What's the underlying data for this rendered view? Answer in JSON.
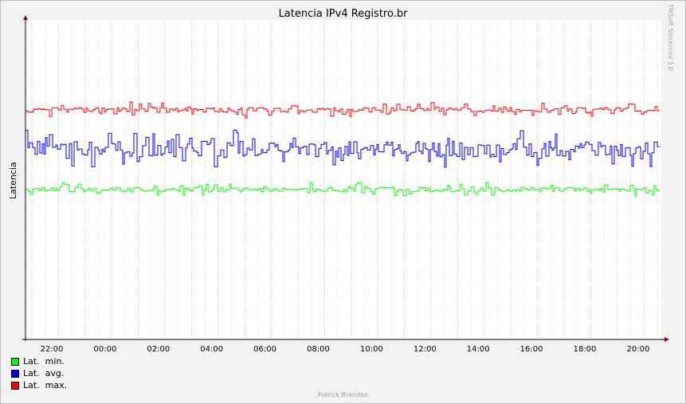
{
  "chart_data": {
    "type": "line",
    "title": "Latencia IPv4 Registro.br",
    "ylabel": "Latencia",
    "xlabel": "",
    "x_ticks": [
      "22:00",
      "00:00",
      "02:00",
      "04:00",
      "06:00",
      "08:00",
      "10:00",
      "12:00",
      "14:00",
      "16:00",
      "18:00",
      "20:00"
    ],
    "series": [
      {
        "name": "Lat.  min.",
        "color": "#00ff00",
        "base": 238,
        "jitter": 3,
        "spike_chance": 0.15,
        "spike": 7
      },
      {
        "name": "Lat.  avg.",
        "color": "#0000ff",
        "base": 187,
        "jitter": 10,
        "spike_chance": 0.2,
        "spike": 18
      },
      {
        "name": "Lat.  max.",
        "color": "#ff0000",
        "base": 138,
        "jitter": 3,
        "spike_chance": 0.15,
        "spike": 8
      }
    ],
    "grid": true,
    "legend_position": "bottom-left"
  },
  "watermark": "TMSoft Slackmini 3.0",
  "footer": "Patrick Brandao"
}
